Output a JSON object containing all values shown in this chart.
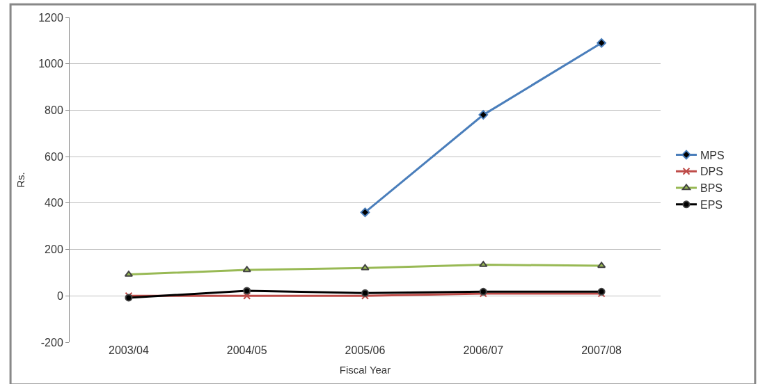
{
  "chart_data": {
    "type": "line",
    "xlabel": "Fiscal Year",
    "ylabel": "Rs.",
    "categories": [
      "2003/04",
      "2004/05",
      "2005/06",
      "2006/07",
      "2007/08"
    ],
    "series": [
      {
        "name": "MPS",
        "color": "#4a7ebb",
        "marker": "diamond",
        "values": [
          null,
          null,
          360,
          780,
          1090
        ]
      },
      {
        "name": "DPS",
        "color": "#be4b48",
        "marker": "cross",
        "values": [
          0,
          0,
          0,
          10,
          10
        ]
      },
      {
        "name": "BPS",
        "color": "#98b954",
        "marker": "triangle",
        "values": [
          92,
          112,
          120,
          134,
          130
        ]
      },
      {
        "name": "EPS",
        "color": "#000000",
        "marker": "circle",
        "values": [
          -8,
          22,
          12,
          18,
          18
        ]
      }
    ],
    "ylim": [
      -200,
      1200
    ],
    "yticks": [
      -200,
      0,
      200,
      400,
      600,
      800,
      1000,
      1200
    ],
    "grid": "y",
    "legend": "right"
  }
}
